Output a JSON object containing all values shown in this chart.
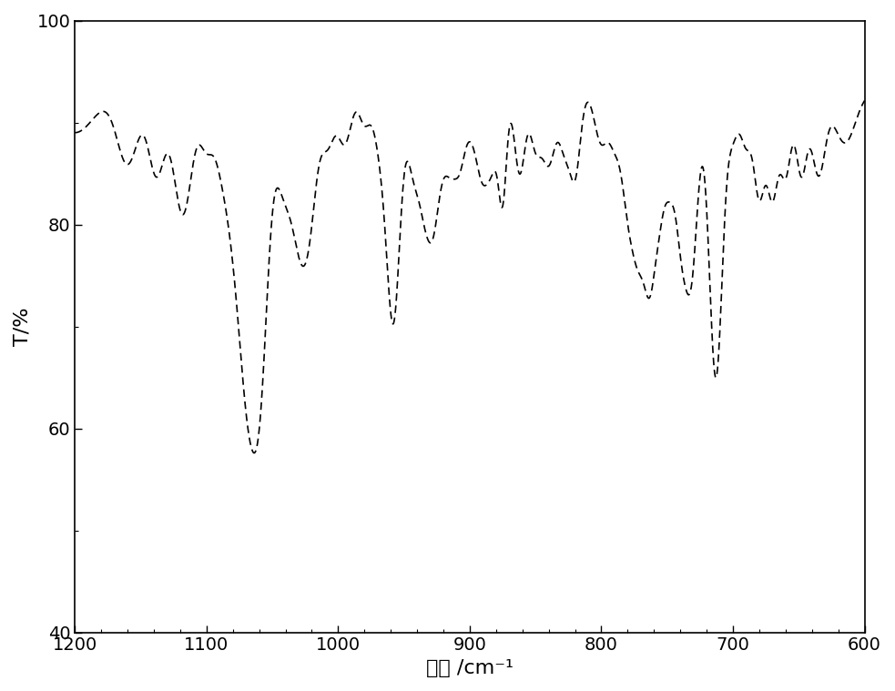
{
  "xlabel": "波数 /cm⁻¹",
  "ylabel": "T/%",
  "xlim": [
    1200,
    600
  ],
  "ylim": [
    40,
    100
  ],
  "xticks": [
    1200,
    1100,
    1000,
    900,
    800,
    700,
    600
  ],
  "yticks": [
    40,
    60,
    80,
    100
  ],
  "line_color": "#000000",
  "line_style": "--",
  "line_width": 1.2,
  "background_color": "#ffffff",
  "title": "",
  "figsize": [
    9.83,
    7.59
  ],
  "dpi": 100
}
